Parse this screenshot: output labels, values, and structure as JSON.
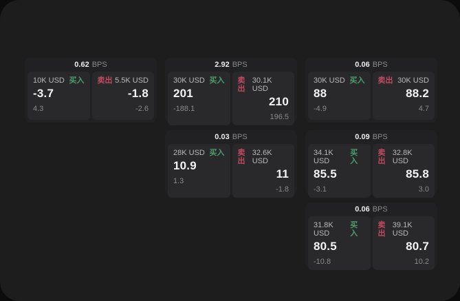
{
  "labels": {
    "bps_unit": "BPS",
    "buy": "买入",
    "sell": "卖出"
  },
  "colors": {
    "outer_bg": "#0c0c0c",
    "window_bg": "#1d1d1e",
    "card_bg": "#212123",
    "panel_bg": "#29292b",
    "buy_text": "#4a9e6b",
    "sell_text": "#c14a5f"
  },
  "cards": [
    {
      "bps": "0.62",
      "buy": {
        "amount": "10K USD",
        "value": "-3.7",
        "sub": "4.3"
      },
      "sell": {
        "amount": "5.5K USD",
        "value": "-1.8",
        "sub": "-2.6"
      }
    },
    {
      "bps": "2.92",
      "buy": {
        "amount": "30K USD",
        "value": "201",
        "sub": "-188.1"
      },
      "sell": {
        "amount": "30.1K USD",
        "value": "210",
        "sub": "196.5"
      }
    },
    {
      "bps": "0.03",
      "buy": {
        "amount": "28K USD",
        "value": "10.9",
        "sub": "1.3"
      },
      "sell": {
        "amount": "32.6K USD",
        "value": "11",
        "sub": "-1.8"
      }
    },
    {
      "bps": "0.06",
      "buy": {
        "amount": "30K USD",
        "value": "88",
        "sub": "-4.9"
      },
      "sell": {
        "amount": "30K USD",
        "value": "88.2",
        "sub": "4.7"
      }
    },
    {
      "bps": "0.09",
      "buy": {
        "amount": "34.1K USD",
        "value": "85.5",
        "sub": "-3.1"
      },
      "sell": {
        "amount": "32.8K USD",
        "value": "85.8",
        "sub": "3.0"
      }
    },
    {
      "bps": "0.06",
      "buy": {
        "amount": "31.8K USD",
        "value": "80.5",
        "sub": "-10.8"
      },
      "sell": {
        "amount": "39.1K USD",
        "value": "80.7",
        "sub": "10.2"
      }
    }
  ]
}
